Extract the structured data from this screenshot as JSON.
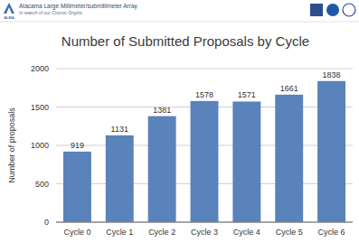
{
  "chart_data": {
    "type": "bar",
    "title": "Number of Submitted Proposals by Cycle",
    "y_label": "Number of proposals",
    "annotations": [
      "ALMA",
      "Atacama Large Millimeter/submillimeter Array",
      "In search of our Cosmic Origins"
    ],
    "categories": [
      "Cycle 0",
      "Cycle 1",
      "Cycle 2",
      "Cycle 3",
      "Cycle 4",
      "Cycle 5",
      "Cycle 6"
    ],
    "values": [
      919,
      1131,
      1381,
      1578,
      1571,
      1661,
      1838
    ],
    "color": "#5a82bb",
    "ylim": [
      0,
      2000
    ],
    "yticks": [
      0,
      500,
      1000,
      1500,
      2000
    ],
    "grid": true,
    "data_labels": true
  }
}
